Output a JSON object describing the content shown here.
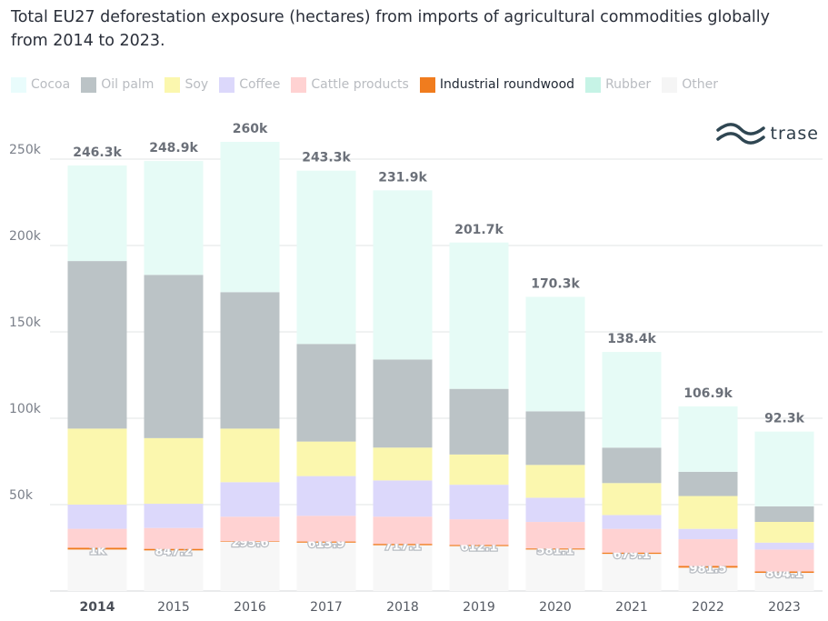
{
  "chart_title": "Total EU27 deforestation exposure (hectares) from imports of agricultural commodities globally from 2014 to 2023.",
  "brand": {
    "name": "trase",
    "icon": "trase-wave-icon"
  },
  "chart_data": {
    "type": "bar",
    "stacked": true,
    "title": "Total EU27 deforestation exposure (hectares) from imports of agricultural commodities globally from 2014 to 2023.",
    "xlabel": "",
    "ylabel": "",
    "ylim": [
      0,
      250000
    ],
    "yticks": [
      50000,
      100000,
      150000,
      200000,
      250000
    ],
    "ytick_labels": [
      "50k",
      "100k",
      "150k",
      "200k",
      "250k"
    ],
    "grid": true,
    "legend_position": "top",
    "highlighted_series": "Industrial roundwood",
    "highlighted_category": "2014",
    "categories": [
      "2014",
      "2015",
      "2016",
      "2017",
      "2018",
      "2019",
      "2020",
      "2021",
      "2022",
      "2023"
    ],
    "totals": [
      246300,
      248900,
      260000,
      243300,
      231900,
      201700,
      170300,
      138400,
      106900,
      92300
    ],
    "total_labels": [
      "246.3k",
      "248.9k",
      "260k",
      "243.3k",
      "231.9k",
      "201.7k",
      "170.3k",
      "138.4k",
      "106.9k",
      "92.3k"
    ],
    "series": [
      {
        "name": "Other",
        "color": "#f7f7f7",
        "values": [
          24000,
          23500,
          28500,
          28000,
          26500,
          26000,
          24000,
          21500,
          13500,
          10500
        ]
      },
      {
        "name": "Industrial roundwood",
        "color": "#f07c1e",
        "values": [
          1000,
          847.2,
          295.6,
          613.9,
          717.1,
          612.1,
          581.1,
          679.1,
          981.5,
          804.1
        ],
        "labels": [
          "1k",
          "847.2",
          "295.6",
          "613.9",
          "717.1",
          "612.1",
          "581.1",
          "679.1",
          "981.5",
          "804.1"
        ]
      },
      {
        "name": "Cattle products",
        "color": "#ffd2d2",
        "values": [
          11000,
          12150,
          14200,
          14900,
          15800,
          14900,
          15400,
          13800,
          15500,
          12700
        ]
      },
      {
        "name": "Coffee",
        "color": "#dcd8fb",
        "values": [
          14000,
          14000,
          20000,
          23000,
          21000,
          20000,
          14000,
          8000,
          6000,
          4000
        ]
      },
      {
        "name": "Soy",
        "color": "#fbf7ae",
        "values": [
          44000,
          38000,
          31000,
          20000,
          19000,
          17500,
          19000,
          18500,
          19000,
          12000
        ]
      },
      {
        "name": "Oil palm",
        "color": "#bbc3c6",
        "values": [
          97000,
          94500,
          79000,
          56500,
          51000,
          38000,
          31000,
          20500,
          14000,
          9000
        ]
      },
      {
        "name": "Rubber",
        "color": "#e6fbf6",
        "values": [
          55300,
          65900,
          87000,
          100300,
          97900,
          84700,
          66300,
          55400,
          37900,
          43300
        ]
      },
      {
        "name": "Cocoa",
        "color": "#e9fcfc",
        "values": [
          0,
          0,
          0,
          0,
          0,
          0,
          0,
          0,
          0,
          0
        ]
      }
    ]
  },
  "legend": [
    {
      "name": "Cocoa",
      "color": "#e9fcfc",
      "icon": "cocoa-swatch-icon"
    },
    {
      "name": "Oil palm",
      "color": "#bbc3c6",
      "icon": "oil-palm-swatch-icon"
    },
    {
      "name": "Soy",
      "color": "#fbf7ae",
      "icon": "soy-swatch-icon"
    },
    {
      "name": "Coffee",
      "color": "#dcd8fb",
      "icon": "coffee-swatch-icon"
    },
    {
      "name": "Cattle products",
      "color": "#ffd2d2",
      "icon": "cattle-products-swatch-icon"
    },
    {
      "name": "Industrial roundwood",
      "color": "#f07c1e",
      "icon": "industrial-roundwood-swatch-icon",
      "active": true
    },
    {
      "name": "Rubber",
      "color": "#c6f3e6",
      "icon": "rubber-swatch-icon"
    },
    {
      "name": "Other",
      "color": "#f5f5f5",
      "icon": "other-swatch-icon"
    }
  ]
}
